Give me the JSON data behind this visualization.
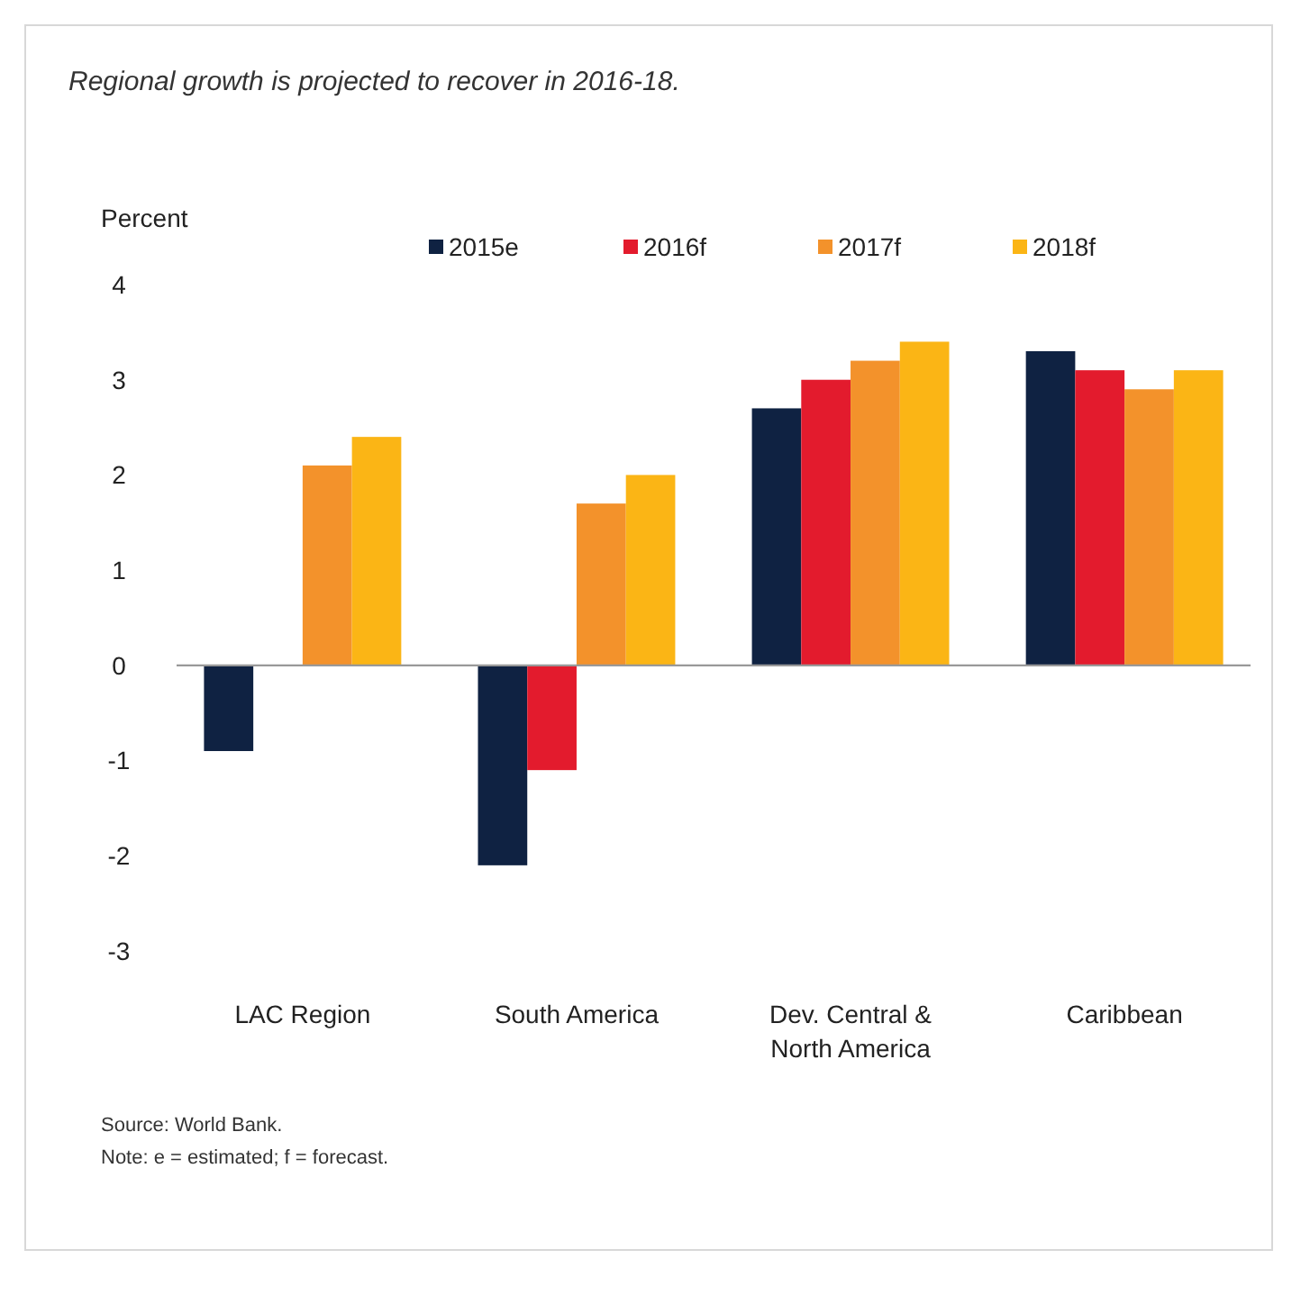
{
  "chart_data": {
    "type": "bar",
    "title": "Regional growth is projected to recover in 2016-18.",
    "ylabel": "Percent",
    "categories": [
      "LAC Region",
      "South America",
      "Dev. Central & North America",
      "Caribbean"
    ],
    "series": [
      {
        "name": "2015e",
        "color": "#0f2242",
        "values": [
          -0.9,
          -2.1,
          2.7,
          3.3
        ]
      },
      {
        "name": "2016f",
        "color": "#e31b2d",
        "values": [
          0,
          -1.1,
          3.0,
          3.1
        ]
      },
      {
        "name": "2017f",
        "color": "#f3922b",
        "values": [
          2.1,
          1.7,
          3.2,
          2.9
        ]
      },
      {
        "name": "2018f",
        "color": "#fbb515",
        "values": [
          2.4,
          2.0,
          3.4,
          3.1
        ]
      }
    ],
    "ylim": [
      -3,
      4
    ],
    "yticks": [
      -3,
      -2,
      -1,
      0,
      1,
      2,
      3,
      4
    ],
    "legend": "top",
    "annotations": [
      "Source: World Bank.",
      "Note: e = estimated; f = forecast."
    ]
  }
}
